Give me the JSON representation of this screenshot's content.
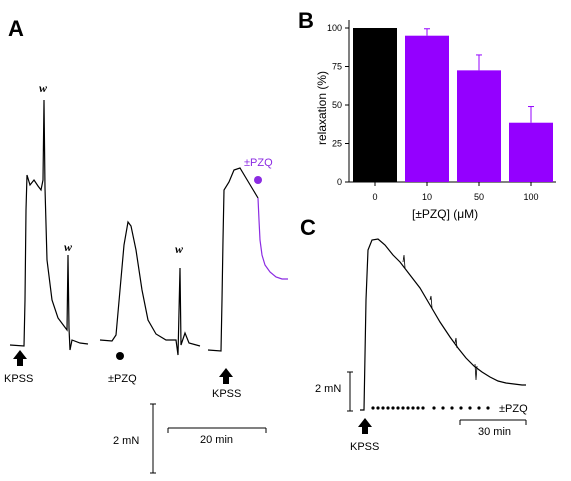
{
  "figure": {
    "panel_a": "A",
    "panel_b": "B",
    "panel_c": "C"
  },
  "panel_a": {
    "w_label": "w",
    "kpss_label": "KPSS",
    "pzq_label": "±PZQ",
    "pzq_label_top": "±PZQ",
    "scale_y_label": "2 mN",
    "scale_x_label": "20 min",
    "trace_color": "#000000",
    "pzq_trace_color": "#8b2be2"
  },
  "panel_c": {
    "kpss_label": "KPSS",
    "pzq_label": "±PZQ",
    "scale_y_label": "2 mN",
    "scale_x_label": "30 min"
  },
  "chart_data": {
    "type": "bar",
    "categories": [
      "0",
      "10",
      "50",
      "100"
    ],
    "values": [
      100,
      95,
      72.5,
      38.5
    ],
    "errors": [
      0,
      4.5,
      10,
      10.5
    ],
    "colors": [
      "#000000",
      "#9400ff",
      "#9400ff",
      "#9400ff"
    ],
    "xlabel": "[±PZQ] (μM)",
    "ylabel": "relaxation (%)",
    "ylim": [
      0,
      100
    ],
    "yticks": [
      "0",
      "25",
      "50",
      "75",
      "100"
    ]
  }
}
